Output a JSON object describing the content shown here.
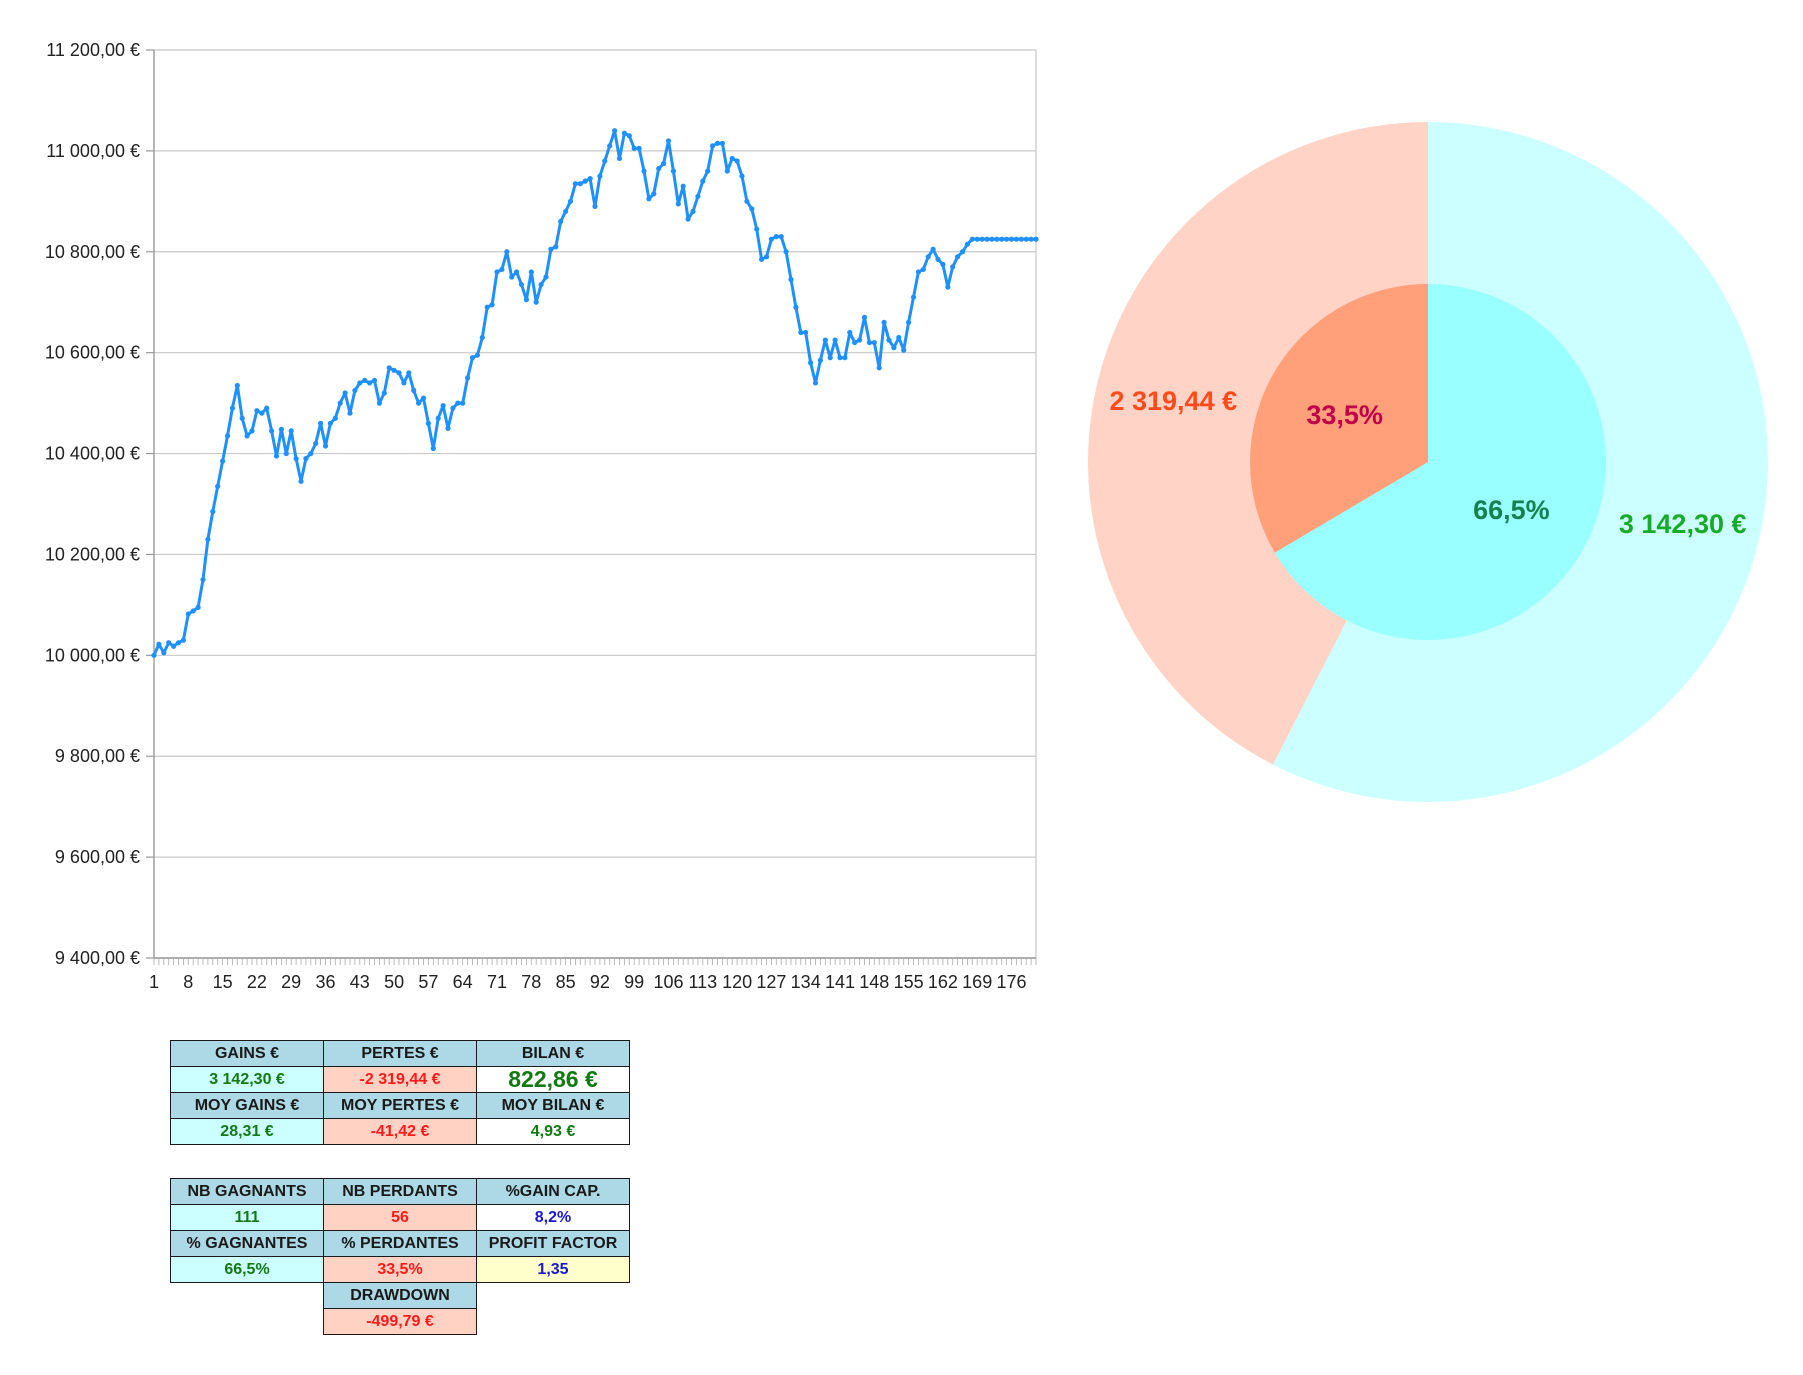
{
  "chart_data": [
    {
      "type": "line",
      "ylim": [
        9400,
        11200
      ],
      "y_ticks": [
        "11 200,00 €",
        "11 000,00 €",
        "10 800,00 €",
        "10 600,00 €",
        "10 400,00 €",
        "10 200,00 €",
        "10 000,00 €",
        "9 800,00 €",
        "9 600,00 €",
        "9 400,00 €"
      ],
      "x_tick_labels": [
        "1",
        "8",
        "15",
        "22",
        "29",
        "36",
        "43",
        "50",
        "57",
        "64",
        "71",
        "78",
        "85",
        "92",
        "99",
        "106",
        "113",
        "120",
        "127",
        "134",
        "141",
        "148",
        "155",
        "162",
        "169",
        "176"
      ],
      "grid": true,
      "color": "#1e90ff",
      "series": [
        {
          "values": [
            10000,
            10022,
            10005,
            10025,
            10018,
            10025,
            10030,
            10082,
            10088,
            10095,
            10150,
            10230,
            10285,
            10335,
            10385,
            10435,
            10490,
            10535,
            10470,
            10435,
            10445,
            10485,
            10480,
            10490,
            10445,
            10395,
            10448,
            10400,
            10445,
            10390,
            10345,
            10390,
            10400,
            10420,
            10460,
            10415,
            10460,
            10470,
            10500,
            10520,
            10480,
            10525,
            10540,
            10545,
            10540,
            10545,
            10500,
            10520,
            10570,
            10565,
            10560,
            10540,
            10560,
            10525,
            10500,
            10510,
            10460,
            10410,
            10470,
            10495,
            10450,
            10490,
            10500,
            10500,
            10550,
            10590,
            10595,
            10630,
            10690,
            10695,
            10760,
            10765,
            10800,
            10750,
            10760,
            10735,
            10705,
            10760,
            10700,
            10735,
            10750,
            10805,
            10810,
            10860,
            10880,
            10900,
            10935,
            10935,
            10940,
            10945,
            10890,
            10950,
            10980,
            11010,
            11040,
            10985,
            11035,
            11030,
            11005,
            11005,
            10960,
            10905,
            10915,
            10965,
            10975,
            11020,
            10960,
            10895,
            10930,
            10865,
            10880,
            10910,
            10940,
            10960,
            11010,
            11015,
            11015,
            10960,
            10985,
            10980,
            10950,
            10900,
            10885,
            10845,
            10785,
            10790,
            10825,
            10830,
            10830,
            10800,
            10745,
            10690,
            10640,
            10640,
            10580,
            10540,
            10585,
            10625,
            10590,
            10625,
            10590,
            10590,
            10640,
            10620,
            10625,
            10670,
            10620,
            10620,
            10570,
            10660,
            10625,
            10610,
            10630,
            10605,
            10660,
            10710,
            10760,
            10765,
            10790,
            10805,
            10785,
            10775,
            10730,
            10770,
            10790,
            10800,
            10815,
            10825,
            10825,
            10825,
            10825,
            10825,
            10825,
            10825,
            10825,
            10825,
            10825,
            10825,
            10825,
            10825,
            10825
          ]
        }
      ]
    },
    {
      "type": "pie",
      "style": "nested-donut",
      "outer": {
        "slices": [
          {
            "value": 3142.3,
            "label": "3 142,30 €",
            "color": "#ccffff",
            "label_color": "#1aaa2a"
          },
          {
            "value": 2319.44,
            "label": "2 319,44 €",
            "color": "#ffd4c6",
            "label_color": "#ff4a1a"
          }
        ]
      },
      "inner": {
        "slices": [
          {
            "value": 66.5,
            "label": "66,5%",
            "color": "#99ffff",
            "label_color": "#178050"
          },
          {
            "value": 33.5,
            "label": "33,5%",
            "color": "#ffa07a",
            "label_color": "#c0004a"
          }
        ]
      }
    }
  ],
  "table1": {
    "row1": [
      "GAINS €",
      "PERTES €",
      "BILAN €"
    ],
    "row2": [
      "3 142,30 €",
      "-2 319,44 €",
      "822,86 €"
    ],
    "row3": [
      "MOY GAINS €",
      "MOY PERTES €",
      "MOY BILAN €"
    ],
    "row4": [
      "28,31 €",
      "-41,42 €",
      "4,93 €"
    ]
  },
  "table2": {
    "row1": [
      "NB GAGNANTS",
      "NB PERDANTS",
      "%GAIN CAP."
    ],
    "row2": [
      "111",
      "56",
      "8,2%"
    ],
    "row3": [
      "% GAGNANTES",
      "% PERDANTES",
      "PROFIT FACTOR"
    ],
    "row4": [
      "66,5%",
      "33,5%",
      "1,35"
    ],
    "row5": [
      "DRAWDOWN"
    ],
    "row6": [
      "-499,79 €"
    ]
  }
}
